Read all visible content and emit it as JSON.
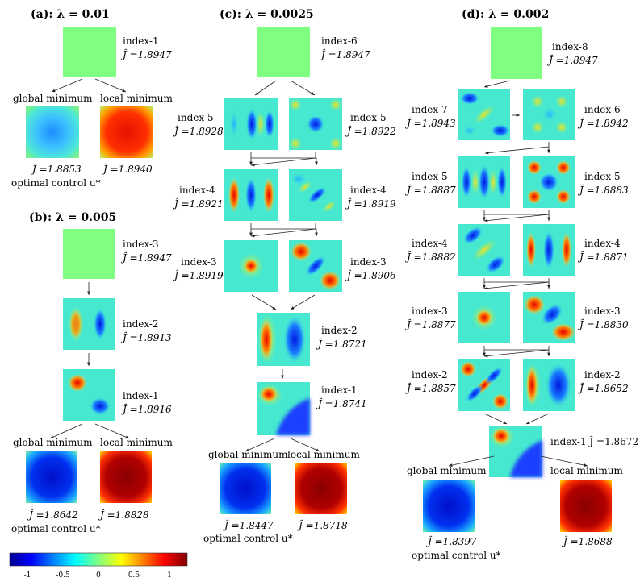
{
  "colorbar": {
    "ticks": [
      "-1",
      "-0.5",
      "0",
      "0.5",
      "1"
    ]
  },
  "panels": {
    "a": {
      "title": "(a): λ = 0.01",
      "top": {
        "index": "index-1",
        "j": "Ĵ =1.8947"
      },
      "branch_left": "global minimum",
      "branch_right": "local minimum",
      "min_left": {
        "j": "Ĵ =1.8853",
        "note": "optimal control u*"
      },
      "min_right": {
        "j": "Ĵ =1.8940"
      }
    },
    "b": {
      "title": "(b): λ = 0.005",
      "nodes": [
        {
          "index": "index-3",
          "j": "Ĵ =1.8947"
        },
        {
          "index": "index-2",
          "j": "Ĵ =1.8913"
        },
        {
          "index": "index-1",
          "j": "Ĵ =1.8916"
        }
      ],
      "branch_left": "global minimum",
      "branch_right": "local minimum",
      "min_left": {
        "j": "Ĵ =1.8642",
        "note": "optimal control u*"
      },
      "min_right": {
        "j": "Ĵ =1.8828"
      }
    },
    "c": {
      "title": "(c): λ = 0.0025",
      "top": {
        "index": "index-6",
        "j": "Ĵ =1.8947"
      },
      "rows": [
        {
          "left": {
            "index": "index-5",
            "j": "Ĵ =1.8928"
          },
          "right": {
            "index": "index-5",
            "j": "Ĵ =1.8922"
          }
        },
        {
          "left": {
            "index": "index-4",
            "j": "Ĵ =1.8921"
          },
          "right": {
            "index": "index-4",
            "j": "Ĵ =1.8919"
          }
        },
        {
          "left": {
            "index": "index-3",
            "j": "Ĵ =1.8919"
          },
          "right": {
            "index": "index-3",
            "j": "Ĵ =1.8906"
          }
        }
      ],
      "mid": [
        {
          "index": "index-2",
          "j": "Ĵ =1.8721"
        },
        {
          "index": "index-1",
          "j": "Ĵ =1.8741"
        }
      ],
      "branch_left": "global minimum",
      "branch_right": "local minimum",
      "min_left": {
        "j": "Ĵ =1.8447",
        "note": "optimal control u*"
      },
      "min_right": {
        "j": "Ĵ =1.8718"
      }
    },
    "d": {
      "title": "(d): λ = 0.002",
      "top": {
        "index": "index-8",
        "j": "Ĵ =1.8947"
      },
      "rows": [
        {
          "left": {
            "index": "index-7",
            "j": "Ĵ =1.8943"
          },
          "right": {
            "index": "index-6",
            "j": "Ĵ =1.8942"
          }
        },
        {
          "left": {
            "index": "index-5",
            "j": "Ĵ =1.8887"
          },
          "right": {
            "index": "index-5",
            "j": "Ĵ =1.8883"
          }
        },
        {
          "left": {
            "index": "index-4",
            "j": "Ĵ =1.8882"
          },
          "right": {
            "index": "index-4",
            "j": "Ĵ =1.8871"
          }
        },
        {
          "left": {
            "index": "index-3",
            "j": "Ĵ =1.8877"
          },
          "right": {
            "index": "index-3",
            "j": "Ĵ =1.8830"
          }
        },
        {
          "left": {
            "index": "index-2",
            "j": "Ĵ =1.8857"
          },
          "right": {
            "index": "index-2",
            "j": "Ĵ =1.8652"
          }
        }
      ],
      "bottom": {
        "label": "index-1  Ĵ =1.8672"
      },
      "branch_left": "global minimum",
      "branch_right": "local minimum",
      "min_left": {
        "j": "Ĵ =1.8397",
        "note": "optimal control u*"
      },
      "min_right": {
        "j": "Ĵ =1.8688"
      }
    }
  }
}
